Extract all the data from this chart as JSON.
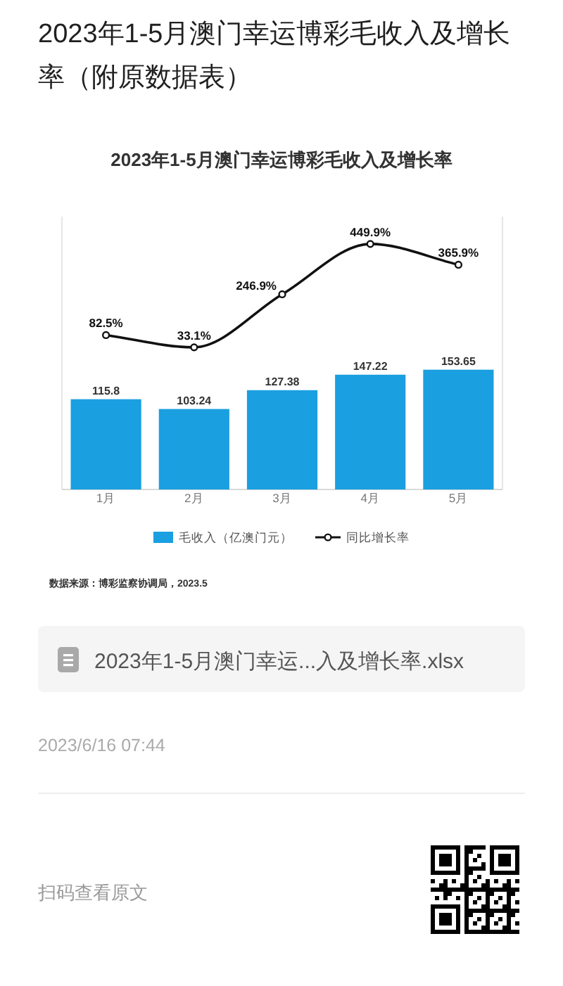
{
  "chart_data": {
    "type": "bar",
    "title": "2023年1-5月澳门幸运博彩毛收入及增长率",
    "categories": [
      "1月",
      "2月",
      "3月",
      "4月",
      "5月"
    ],
    "series": [
      {
        "name": "毛收入（亿澳门元）",
        "color": "#1a9fe0",
        "values": [
          115.8,
          103.24,
          127.38,
          147.22,
          153.65
        ],
        "value_labels": [
          "115.8",
          "103.24",
          "127.38",
          "147.22",
          "153.65"
        ]
      },
      {
        "name": "同比增长率",
        "type": "line",
        "axis": "y2",
        "color": "#111111",
        "values": [
          82.5,
          33.1,
          246.9,
          449.9,
          365.9
        ],
        "value_labels": [
          "82.5%",
          "33.1%",
          "246.9%",
          "449.9%",
          "365.9%"
        ]
      }
    ],
    "ylim": [
      0,
      350
    ],
    "y2lim": [
      -540,
      560
    ],
    "tick_labels": "x",
    "legend": "bottom",
    "marker": "circle",
    "line_style": "solid",
    "annotations": [
      "2023年1-5月澳门幸运博彩毛收入及增长率（附原数据表）",
      "数据来源：博彩监察协调局，2023.5",
      "2023年1-5月澳门幸运...入及增长率.xlsx",
      "2023/6/16 07:44",
      "扫码查看原文"
    ]
  }
}
